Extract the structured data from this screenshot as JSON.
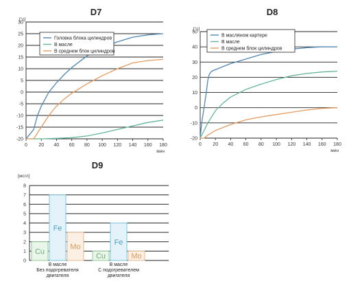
{
  "chart_data": [
    {
      "type": "line",
      "title": "D7",
      "yunit": "[°c]",
      "xunit": "мин",
      "xlim": [
        0,
        180
      ],
      "ylim": [
        -20,
        30
      ],
      "xticks": [
        0,
        20,
        40,
        60,
        80,
        100,
        120,
        140,
        160,
        180
      ],
      "yticks": [
        -20,
        -15,
        -10,
        -5,
        0,
        5,
        10,
        15,
        20,
        25,
        30
      ],
      "grid": "horizontal",
      "legend": "top-right",
      "series": [
        {
          "name": "Головка блока цилиндров",
          "color": "#4f86b4",
          "x": [
            0,
            5,
            10,
            15,
            20,
            30,
            40,
            50,
            60,
            70,
            80,
            100,
            120,
            140,
            160,
            180
          ],
          "y": [
            -20,
            -18,
            -16,
            -10,
            -6,
            0,
            4,
            7.5,
            10.5,
            13,
            15.5,
            19,
            21.5,
            23.5,
            24.5,
            25
          ]
        },
        {
          "name": "В масле",
          "color": "#62b595",
          "x": [
            0,
            10,
            20,
            40,
            60,
            80,
            100,
            120,
            140,
            160,
            180
          ],
          "y": [
            -20,
            -20,
            -20,
            -19.8,
            -19.5,
            -18.8,
            -17.5,
            -16,
            -14.5,
            -13,
            -12
          ]
        },
        {
          "name": "В среднем блок цилиндров",
          "color": "#e49a5e",
          "x": [
            0,
            10,
            20,
            30,
            40,
            50,
            60,
            70,
            80,
            100,
            120,
            140,
            160,
            180
          ],
          "y": [
            -20,
            -20,
            -15,
            -10,
            -6,
            -3,
            -0.5,
            1.5,
            3.5,
            7,
            10,
            12.5,
            13.5,
            14
          ]
        }
      ]
    },
    {
      "type": "line",
      "title": "D8",
      "yunit": "[°c]",
      "xunit": "мин",
      "xlim": [
        0,
        180
      ],
      "ylim": [
        -20,
        50
      ],
      "xticks": [
        0,
        20,
        40,
        60,
        80,
        100,
        120,
        140,
        160,
        180
      ],
      "yticks": [
        -20,
        -10,
        0,
        10,
        20,
        30,
        40,
        50
      ],
      "grid": "horizontal",
      "legend": "top-center",
      "series": [
        {
          "name": "В масляном картере",
          "color": "#4f86b4",
          "x": [
            0,
            2,
            5,
            8,
            10,
            12,
            15,
            20,
            30,
            40,
            60,
            80,
            100,
            120,
            140,
            160,
            180
          ],
          "y": [
            -20,
            -10,
            0,
            10,
            18,
            22,
            24,
            25,
            27,
            29,
            32,
            35,
            37,
            38.5,
            39.5,
            40,
            40
          ]
        },
        {
          "name": "В масле",
          "color": "#62b595",
          "x": [
            0,
            5,
            10,
            20,
            30,
            40,
            60,
            80,
            100,
            120,
            140,
            160,
            180
          ],
          "y": [
            -20,
            -15,
            -10,
            -2,
            3,
            7,
            12,
            15.5,
            18.5,
            21,
            22.5,
            23.5,
            24
          ]
        },
        {
          "name": "В среднем блок цилиндров",
          "color": "#e49a5e",
          "x": [
            0,
            5,
            10,
            20,
            30,
            40,
            60,
            80,
            100,
            120,
            140,
            160,
            180
          ],
          "y": [
            -20,
            -20,
            -18,
            -15,
            -13,
            -11,
            -8,
            -6,
            -4.5,
            -3,
            -1.5,
            -0.5,
            0
          ]
        }
      ]
    },
    {
      "type": "bar",
      "title": "D9",
      "yunit": "[мсгл]",
      "ylim": [
        0,
        8
      ],
      "yticks": [
        0,
        1,
        2,
        3,
        4,
        5,
        6,
        7,
        8
      ],
      "grid": "horizontal",
      "groups": [
        {
          "label_lines": [
            "В масле",
            "Без подогревателя",
            "двигателя"
          ],
          "bars": [
            {
              "label": "Cu",
              "value": 2
            },
            {
              "label": "Fe",
              "value": 7
            },
            {
              "label": "Mo",
              "value": 3
            }
          ]
        },
        {
          "label_lines": [
            "В масле",
            "С подогревателем",
            "двигателя"
          ],
          "bars": [
            {
              "label": "Cu",
              "value": 1
            },
            {
              "label": "Fe",
              "value": 4
            },
            {
              "label": "Mo",
              "value": 1
            }
          ]
        }
      ],
      "bar_colors": {
        "Cu": {
          "fill": "#e9f6e9",
          "stroke": "#92c99a",
          "text": "#6aa877"
        },
        "Fe": {
          "fill": "#e3f3f9",
          "stroke": "#7cc3dd",
          "text": "#4d9fc2"
        },
        "Mo": {
          "fill": "#fcf0e4",
          "stroke": "#e5b98b",
          "text": "#d29a5d"
        }
      }
    }
  ]
}
